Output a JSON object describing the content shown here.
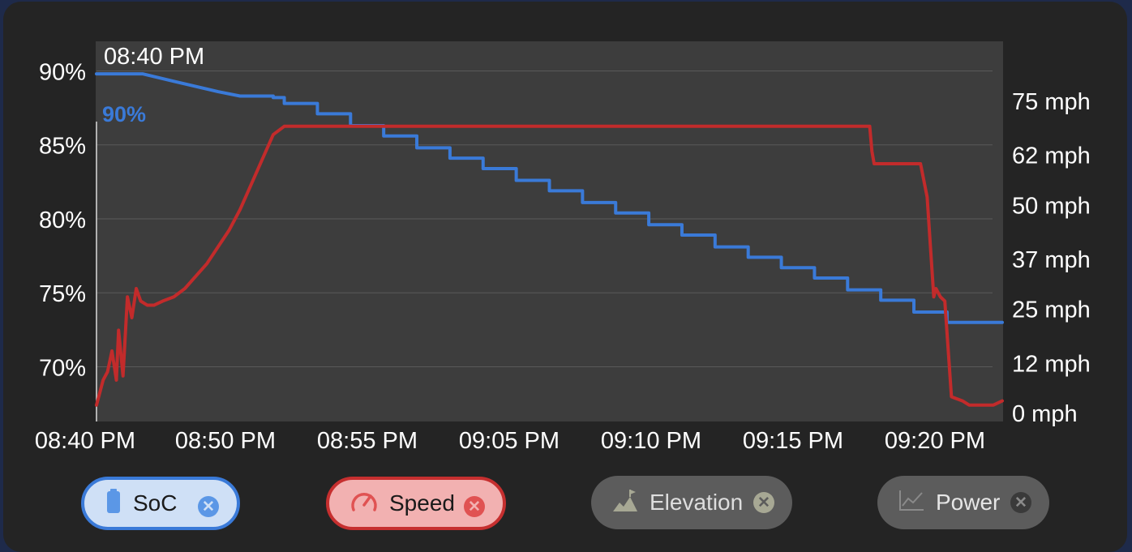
{
  "chart_data": {
    "type": "line",
    "hover_time": "08:40 PM",
    "hover_value": "90%",
    "x_axis": {
      "tick_labels": [
        "08:40 PM",
        "08:50 PM",
        "08:55 PM",
        "09:05 PM",
        "09:10 PM",
        "09:15 PM",
        "09:20 PM"
      ],
      "range": [
        "08:40 PM",
        "09:21 PM"
      ]
    },
    "y_left": {
      "tick_labels": [
        "90%",
        "85%",
        "80%",
        "75%",
        "70%"
      ],
      "range": [
        66.3,
        92
      ]
    },
    "y_right": {
      "tick_labels": [
        "75 mph",
        "62 mph",
        "50 mph",
        "37 mph",
        "25 mph",
        "12 mph",
        "0 mph"
      ],
      "range": [
        0,
        75
      ]
    },
    "series": [
      {
        "name": "SoC",
        "axis": "left",
        "color": "#3a7ad8",
        "x_minutes": [
          0,
          2.1,
          3.5,
          5.5,
          6.5,
          8,
          8.5,
          10,
          11.5,
          13,
          14.5,
          16,
          17.5,
          19,
          20.5,
          22,
          23.5,
          25,
          26.5,
          28,
          29.5,
          31,
          32.5,
          34,
          35.5,
          37,
          38.5,
          41
        ],
        "values": [
          89.8,
          89.8,
          89.3,
          88.6,
          88.3,
          88.2,
          87.8,
          87.1,
          86.3,
          85.6,
          84.8,
          84.1,
          83.4,
          82.6,
          81.9,
          81.1,
          80.4,
          79.6,
          78.9,
          78.1,
          77.4,
          76.7,
          76.0,
          75.2,
          74.5,
          73.7,
          73.0,
          73.0
        ]
      },
      {
        "name": "Speed",
        "axis": "right",
        "color": "#c22b2b",
        "x_minutes": [
          0,
          0.3,
          0.5,
          0.7,
          0.9,
          1.0,
          1.2,
          1.4,
          1.6,
          1.8,
          2.0,
          2.3,
          2.6,
          3.0,
          3.5,
          4.0,
          4.5,
          5.0,
          5.5,
          6.0,
          6.5,
          7.0,
          7.5,
          8.0,
          8.5,
          9.0,
          10,
          15,
          20,
          25,
          30,
          35,
          35.1,
          35.2,
          37.3,
          37.6,
          37.9,
          38.0,
          38.2,
          38.4,
          38.7,
          39.2,
          39.5,
          40,
          40.6,
          41
        ],
        "values": [
          2,
          8,
          10,
          15,
          8,
          20,
          9,
          28,
          23,
          30,
          27,
          26,
          26,
          27,
          28,
          30,
          33,
          36,
          40,
          44,
          49,
          55,
          61,
          67,
          69,
          69,
          69,
          69,
          69,
          69,
          69,
          69,
          63,
          60,
          60,
          52,
          28,
          30,
          28,
          27,
          4,
          3,
          2,
          2,
          2,
          3
        ]
      }
    ]
  },
  "legend": [
    {
      "name": "SoC",
      "icon": "battery-icon",
      "state": "active"
    },
    {
      "name": "Speed",
      "icon": "speedometer-icon",
      "state": "active"
    },
    {
      "name": "Elevation",
      "icon": "mountain-flag-icon",
      "state": "inactive"
    },
    {
      "name": "Power",
      "icon": "line-chart-icon",
      "state": "inactive"
    }
  ],
  "remove_symbol": "✕",
  "colors": {
    "panel": "#242424",
    "plot_area": "#3d3d3d",
    "soc": "#3a7ad8",
    "speed": "#c22b2b"
  }
}
